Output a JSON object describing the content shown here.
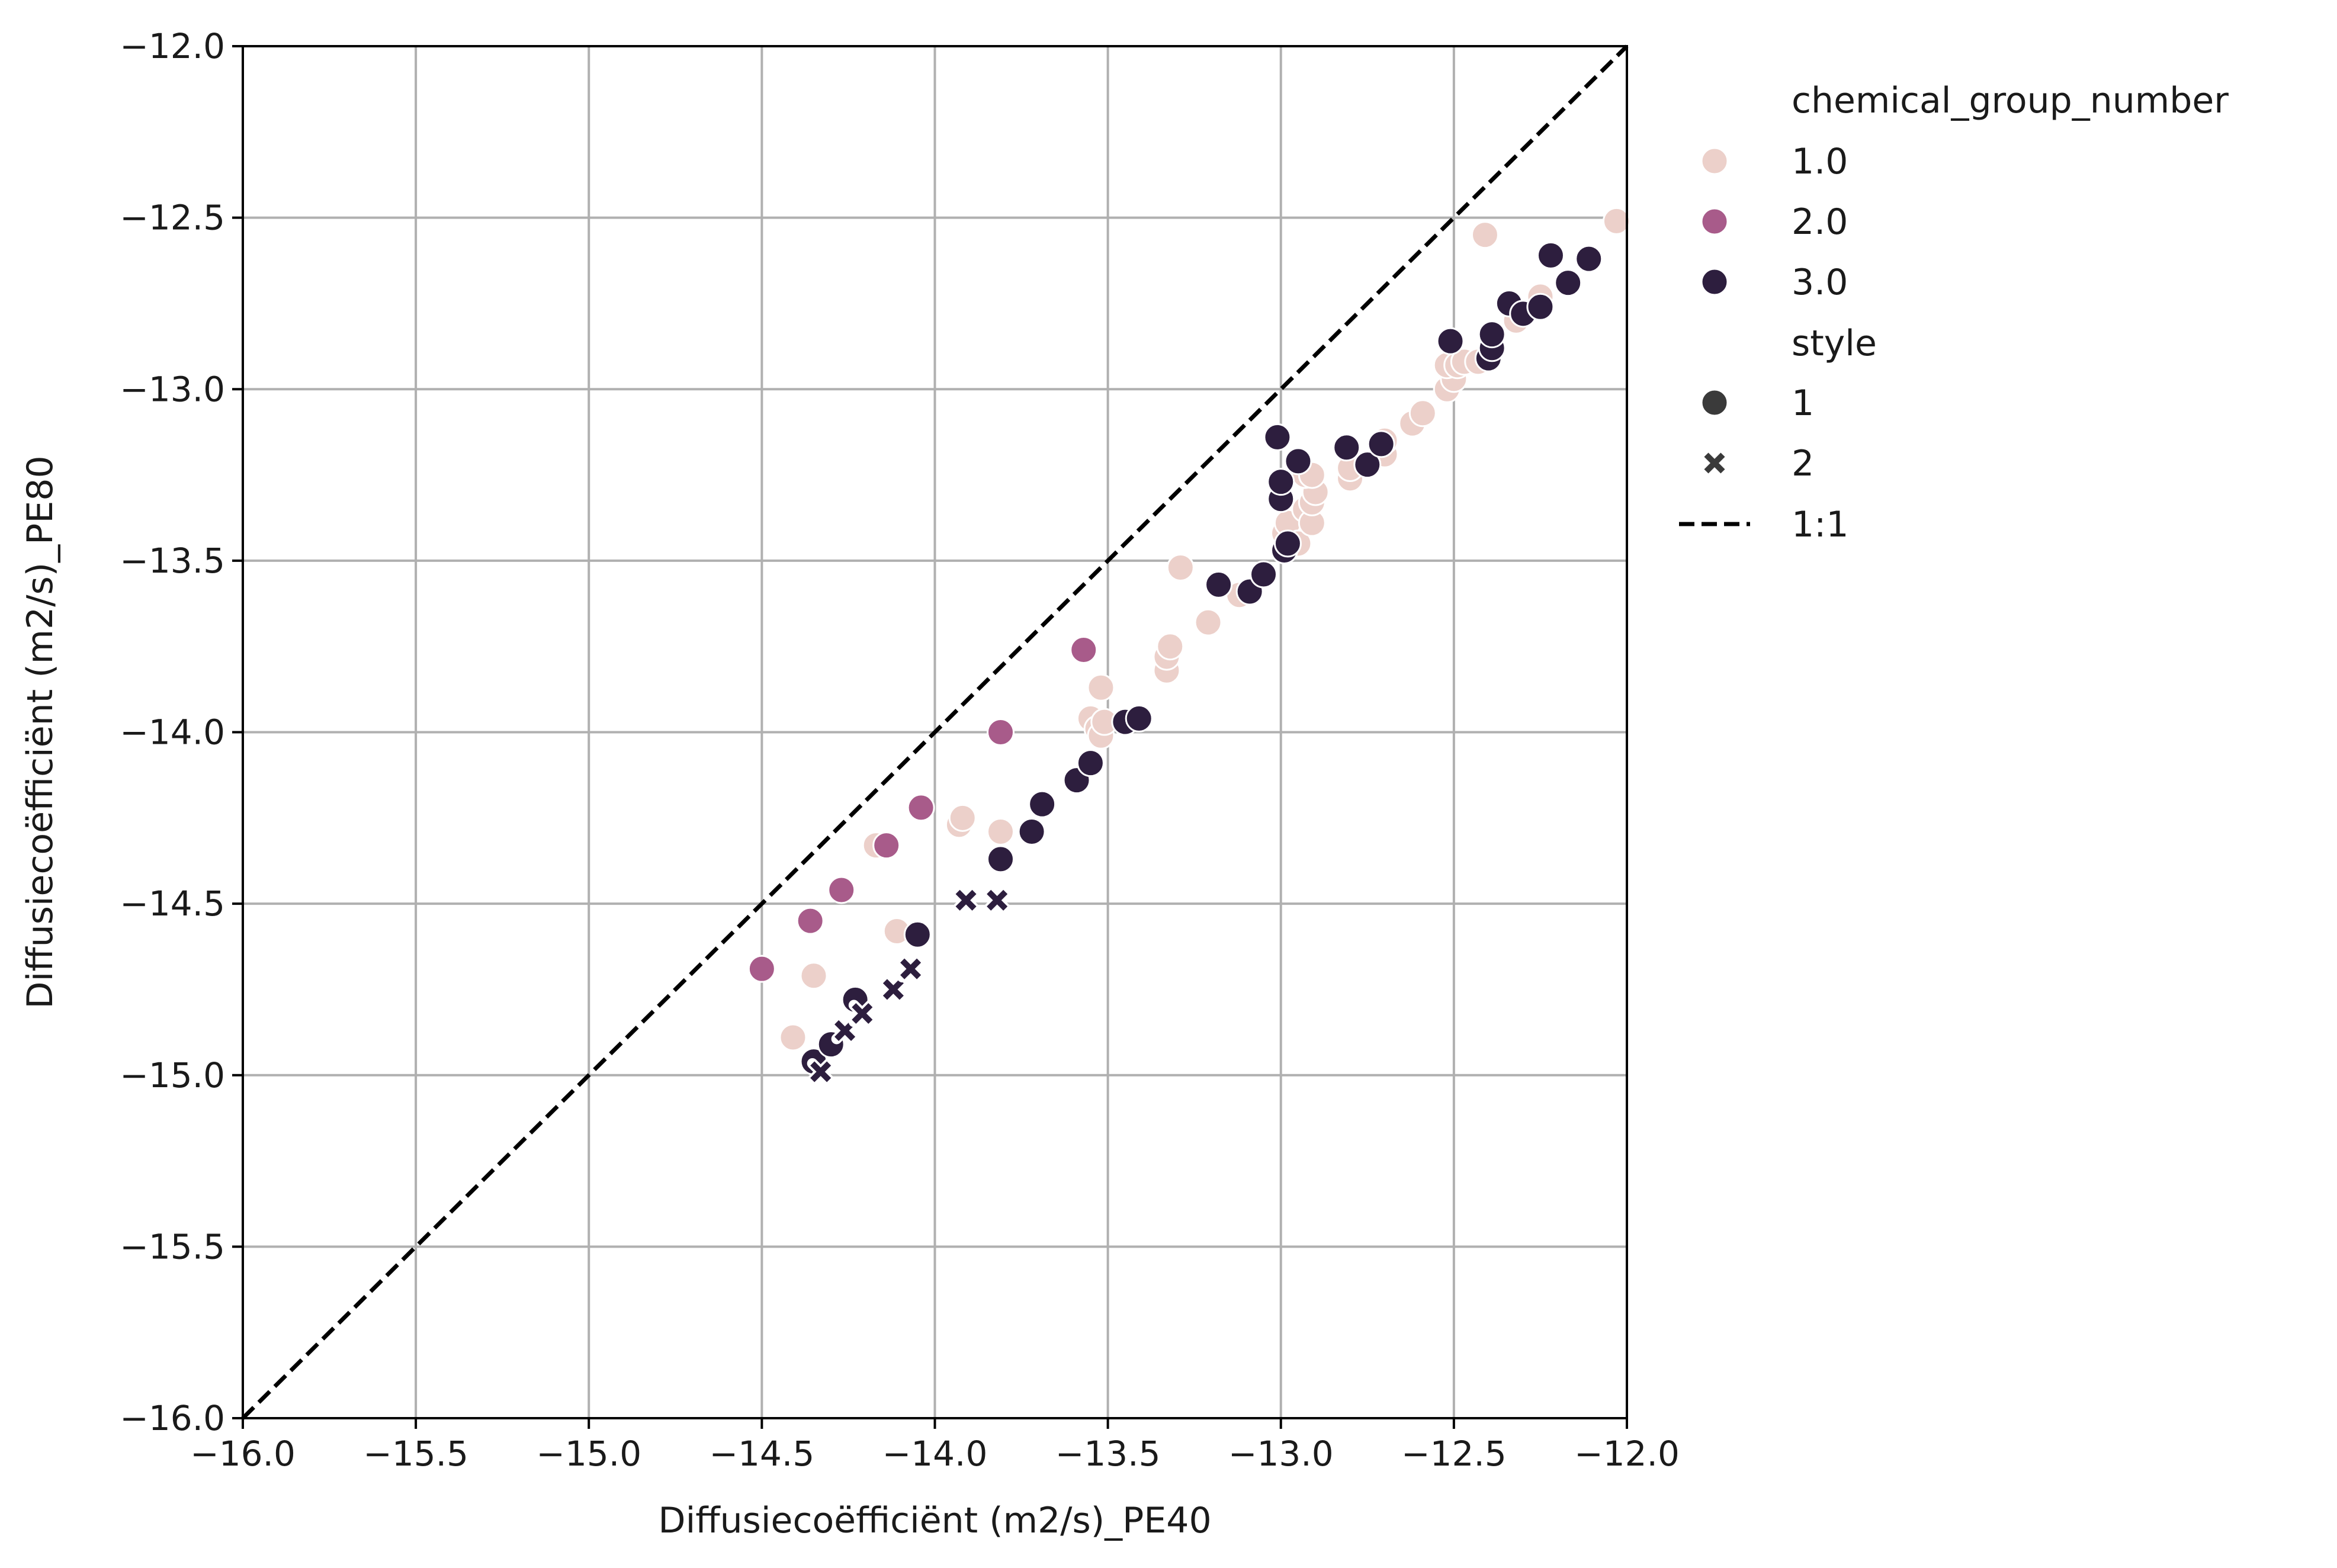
{
  "chart_data": {
    "type": "scatter",
    "xlabel": "Diffusiecoëfficiënt (m2/s)_PE40",
    "ylabel": "Diffusiecoëfficiënt (m2/s)_PE80",
    "xlim": [
      -16.0,
      -12.0
    ],
    "ylim": [
      -16.0,
      -12.0
    ],
    "xticks": [
      "−16.0",
      "−15.5",
      "−15.0",
      "−14.5",
      "−14.0",
      "−13.5",
      "−13.0",
      "−12.5",
      "−12.0"
    ],
    "yticks": [
      "−12.0",
      "−12.5",
      "−13.0",
      "−13.5",
      "−14.0",
      "−14.5",
      "−15.0",
      "−15.5",
      "−16.0"
    ],
    "grid": true,
    "legend": {
      "position": "outside-right",
      "hue_title": "chemical_group_number",
      "hue_entries": [
        {
          "label": "1.0",
          "color": "#ecd0ca"
        },
        {
          "label": "2.0",
          "color": "#a85b8a"
        },
        {
          "label": "3.0",
          "color": "#2d1e3e"
        }
      ],
      "style_title": "style",
      "style_entries": [
        {
          "label": "1",
          "marker": "circle"
        },
        {
          "label": "2",
          "marker": "x"
        }
      ],
      "line_label": "1:1"
    },
    "reference_line": {
      "label": "1:1",
      "from": [
        -16.0,
        -16.0
      ],
      "to": [
        -12.0,
        -12.0
      ],
      "style": "dashed",
      "color": "#000000"
    },
    "series": [
      {
        "hue": "1.0",
        "style": "1",
        "marker": "circle",
        "color": "#ecd0ca",
        "points": [
          [
            -14.41,
            -14.89
          ],
          [
            -14.35,
            -14.71
          ],
          [
            -14.17,
            -14.33
          ],
          [
            -14.11,
            -14.58
          ],
          [
            -13.93,
            -14.27
          ],
          [
            -13.92,
            -14.25
          ],
          [
            -13.81,
            -14.29
          ],
          [
            -13.55,
            -13.96
          ],
          [
            -13.53,
            -13.99
          ],
          [
            -13.52,
            -14.01
          ],
          [
            -13.51,
            -13.97
          ],
          [
            -13.52,
            -13.87
          ],
          [
            -13.33,
            -13.82
          ],
          [
            -13.33,
            -13.78
          ],
          [
            -13.32,
            -13.75
          ],
          [
            -13.29,
            -13.52
          ],
          [
            -13.21,
            -13.68
          ],
          [
            -13.12,
            -13.6
          ],
          [
            -12.99,
            -13.42
          ],
          [
            -12.98,
            -13.39
          ],
          [
            -12.95,
            -13.45
          ],
          [
            -12.93,
            -13.35
          ],
          [
            -12.91,
            -13.39
          ],
          [
            -12.91,
            -13.33
          ],
          [
            -12.9,
            -13.3
          ],
          [
            -12.93,
            -13.25
          ],
          [
            -12.91,
            -13.25
          ],
          [
            -12.8,
            -13.26
          ],
          [
            -12.8,
            -13.23
          ],
          [
            -12.7,
            -13.19
          ],
          [
            -12.7,
            -13.15
          ],
          [
            -12.62,
            -13.1
          ],
          [
            -12.59,
            -13.07
          ],
          [
            -12.52,
            -13.0
          ],
          [
            -12.5,
            -12.97
          ],
          [
            -12.52,
            -12.93
          ],
          [
            -12.49,
            -12.93
          ],
          [
            -12.47,
            -12.92
          ],
          [
            -12.43,
            -12.92
          ],
          [
            -12.41,
            -12.55
          ],
          [
            -12.32,
            -12.8
          ],
          [
            -12.25,
            -12.73
          ],
          [
            -12.03,
            -12.51
          ]
        ]
      },
      {
        "hue": "2.0",
        "style": "1",
        "marker": "circle",
        "color": "#a85b8a",
        "points": [
          [
            -14.5,
            -14.69
          ],
          [
            -14.36,
            -14.55
          ],
          [
            -14.27,
            -14.46
          ],
          [
            -14.14,
            -14.33
          ],
          [
            -14.04,
            -14.22
          ],
          [
            -13.81,
            -14.0
          ],
          [
            -13.57,
            -13.76
          ]
        ]
      },
      {
        "hue": "3.0",
        "style": "1",
        "marker": "circle",
        "color": "#2d1e3e",
        "points": [
          [
            -14.35,
            -14.96
          ],
          [
            -14.3,
            -14.91
          ],
          [
            -14.23,
            -14.78
          ],
          [
            -14.05,
            -14.59
          ],
          [
            -13.81,
            -14.37
          ],
          [
            -13.72,
            -14.29
          ],
          [
            -13.69,
            -14.21
          ],
          [
            -13.59,
            -14.14
          ],
          [
            -13.55,
            -14.09
          ],
          [
            -13.45,
            -13.97
          ],
          [
            -13.41,
            -13.96
          ],
          [
            -13.18,
            -13.57
          ],
          [
            -13.09,
            -13.59
          ],
          [
            -13.05,
            -13.54
          ],
          [
            -12.99,
            -13.47
          ],
          [
            -12.98,
            -13.45
          ],
          [
            -13.0,
            -13.32
          ],
          [
            -13.0,
            -13.27
          ],
          [
            -12.95,
            -13.21
          ],
          [
            -13.01,
            -13.14
          ],
          [
            -12.81,
            -13.17
          ],
          [
            -12.75,
            -13.22
          ],
          [
            -12.71,
            -13.16
          ],
          [
            -12.51,
            -12.86
          ],
          [
            -12.4,
            -12.91
          ],
          [
            -12.39,
            -12.88
          ],
          [
            -12.39,
            -12.84
          ],
          [
            -12.34,
            -12.75
          ],
          [
            -12.3,
            -12.78
          ],
          [
            -12.25,
            -12.76
          ],
          [
            -12.22,
            -12.61
          ],
          [
            -12.17,
            -12.69
          ],
          [
            -12.11,
            -12.62
          ]
        ]
      },
      {
        "hue": "3.0",
        "style": "2",
        "marker": "x",
        "color": "#2d1e3e",
        "points": [
          [
            -14.33,
            -14.99
          ],
          [
            -14.26,
            -14.87
          ],
          [
            -14.21,
            -14.82
          ],
          [
            -14.12,
            -14.75
          ],
          [
            -14.07,
            -14.69
          ],
          [
            -13.91,
            -14.49
          ],
          [
            -13.82,
            -14.49
          ]
        ]
      }
    ]
  }
}
